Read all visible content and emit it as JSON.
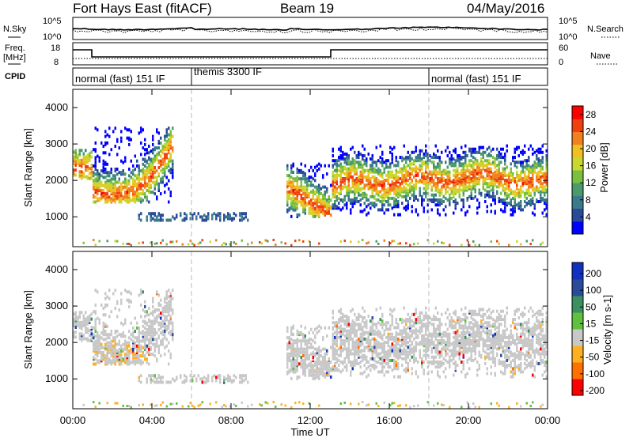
{
  "header": {
    "station": "Fort Hays East (fitACF)",
    "beam": "Beam 19",
    "date": "04/May/2016"
  },
  "noise_panel": {
    "left_label": "N.Sky",
    "right_label": "N.Search",
    "left_ticks": [
      "10^5",
      "10^0"
    ],
    "right_ticks": [
      "10^5",
      "10^0"
    ]
  },
  "freq_panel": {
    "left_label_1": "Freq.",
    "left_label_2": "[MHz]",
    "right_label": "Nave",
    "left_ticks": [
      "18",
      "8"
    ],
    "right_ticks": [
      "60",
      "0"
    ]
  },
  "cpid": {
    "label": "CPID",
    "segments": [
      {
        "name": "normal (fast) 151 IF",
        "start": 0,
        "end": 6
      },
      {
        "name": "themis 3300 IF",
        "start": 6,
        "end": 18
      },
      {
        "name": "normal (fast) 151 IF",
        "start": 18,
        "end": 24
      }
    ]
  },
  "chart_data": [
    {
      "type": "heatmap",
      "title": "",
      "ylabel": "Slant Range [km]",
      "xlabel": "Time UT",
      "x_ticks": [
        "00:00",
        "04:00",
        "08:00",
        "12:00",
        "16:00",
        "20:00",
        "00:00"
      ],
      "y_ticks": [
        "1000",
        "2000",
        "3000",
        "4000"
      ],
      "xlim_hours": [
        0,
        24
      ],
      "ylim_km": [
        180,
        4500
      ],
      "colorbar": {
        "label": "Power [dB]",
        "ticks": [
          "4",
          "8",
          "12",
          "16",
          "20",
          "24",
          "28"
        ],
        "range": [
          0,
          30
        ]
      },
      "echo_bands": [
        {
          "t_start": 0.0,
          "t_end": 0.9,
          "range_km": [
            2100,
            2900
          ]
        },
        {
          "t_start": 0.9,
          "t_end": 5.0,
          "range_km": [
            1450,
            3500
          ]
        },
        {
          "t_start": 3.3,
          "t_end": 8.8,
          "range_km": [
            950,
            1150
          ]
        },
        {
          "t_start": 10.7,
          "t_end": 13.0,
          "range_km": [
            1050,
            2500
          ]
        },
        {
          "t_start": 13.0,
          "t_end": 24.0,
          "range_km": [
            1100,
            3000
          ]
        }
      ]
    },
    {
      "type": "heatmap",
      "title": "",
      "ylabel": "Slant Range [km]",
      "xlabel": "Time UT",
      "x_ticks": [
        "00:00",
        "04:00",
        "08:00",
        "12:00",
        "16:00",
        "20:00",
        "00:00"
      ],
      "y_ticks": [
        "1000",
        "2000",
        "3000",
        "4000"
      ],
      "xlim_hours": [
        0,
        24
      ],
      "ylim_km": [
        180,
        4500
      ],
      "colorbar": {
        "label": "Velocity [m s-1]",
        "ticks": [
          "200",
          "100",
          "50",
          "15",
          "-15",
          "-50",
          "-100",
          "-200"
        ],
        "range": [
          -250,
          250
        ]
      }
    }
  ],
  "colors": {
    "power_scale": [
      "#0000ff",
      "#2a4a9a",
      "#3a7a8a",
      "#4a9a6a",
      "#7ac040",
      "#c8d830",
      "#f0c020",
      "#f08020",
      "#f04010",
      "#ff0000"
    ],
    "velocity_scale": [
      "#ff0000",
      "#ff7000",
      "#ffb020",
      "#c8c8c8",
      "#60c040",
      "#3a9060",
      "#2a4a9a",
      "#1030c0"
    ]
  }
}
